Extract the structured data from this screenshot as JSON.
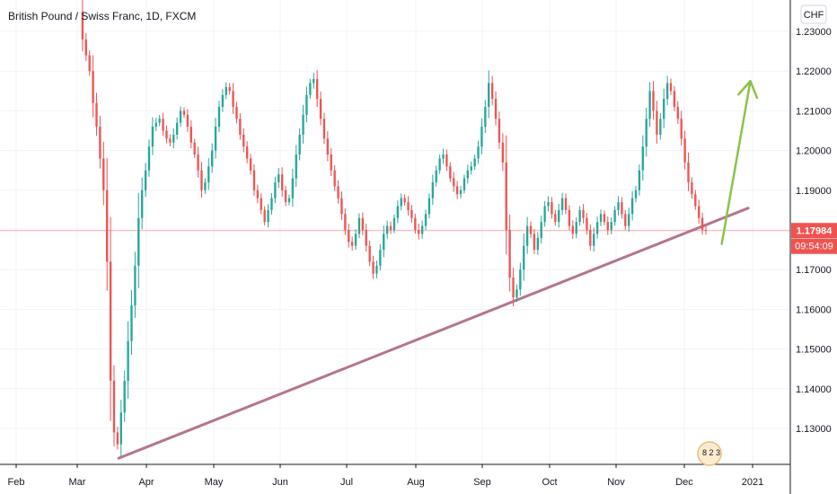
{
  "chart_data": {
    "type": "candlestick",
    "title": "British Pound / Swiss Franc, 1D, FXCM",
    "currency": "CHF",
    "y_range": [
      1.121,
      1.233
    ],
    "y_ticks": [
      "1.23000",
      "1.22000",
      "1.21000",
      "1.20000",
      "1.19000",
      "1.18000",
      "1.17000",
      "1.16000",
      "1.15000",
      "1.14000",
      "1.13000"
    ],
    "x_ticks": [
      "Feb",
      "Mar",
      "Apr",
      "May",
      "Jun",
      "Jul",
      "Aug",
      "Sep",
      "Oct",
      "Nov",
      "Dec",
      "2021"
    ],
    "last_price": "1.17984",
    "countdown": "09:54:09",
    "up_color": "#26a69a",
    "down_color": "#ef5350",
    "trendline_color": "#b5758e",
    "arrow_color": "#8bc34a",
    "price_line_color": "#ef5350",
    "watermark_text": "8 2 3",
    "trendline": {
      "start": {
        "date": "2020-03-18",
        "value": 1.1225
      },
      "end": {
        "date": "2020-12-28",
        "value": 1.1855
      }
    },
    "arrow": {
      "start": {
        "date": "2020-12-16",
        "value": 1.1765
      },
      "end": {
        "date": "2020-12-29",
        "value": 1.2175
      }
    },
    "closes": [
      1.235,
      1.228,
      1.224,
      1.22,
      1.212,
      1.206,
      1.198,
      1.19,
      1.172,
      1.142,
      1.129,
      1.126,
      1.134,
      1.142,
      1.152,
      1.161,
      1.171,
      1.183,
      1.19,
      1.195,
      1.201,
      1.206,
      1.207,
      1.208,
      1.205,
      1.203,
      1.202,
      1.204,
      1.207,
      1.21,
      1.209,
      1.206,
      1.202,
      1.199,
      1.195,
      1.19,
      1.192,
      1.196,
      1.2,
      1.206,
      1.211,
      1.214,
      1.216,
      1.215,
      1.211,
      1.208,
      1.204,
      1.201,
      1.198,
      1.195,
      1.19,
      1.188,
      1.185,
      1.182,
      1.185,
      1.188,
      1.192,
      1.194,
      1.19,
      1.187,
      1.188,
      1.193,
      1.199,
      1.204,
      1.209,
      1.214,
      1.217,
      1.218,
      1.213,
      1.208,
      1.203,
      1.199,
      1.195,
      1.191,
      1.188,
      1.184,
      1.18,
      1.177,
      1.176,
      1.179,
      1.183,
      1.18,
      1.176,
      1.172,
      1.169,
      1.171,
      1.175,
      1.179,
      1.181,
      1.18,
      1.183,
      1.186,
      1.188,
      1.187,
      1.185,
      1.183,
      1.18,
      1.179,
      1.181,
      1.184,
      1.188,
      1.192,
      1.195,
      1.198,
      1.199,
      1.196,
      1.193,
      1.191,
      1.189,
      1.19,
      1.193,
      1.195,
      1.196,
      1.198,
      1.201,
      1.206,
      1.211,
      1.217,
      1.213,
      1.208,
      1.202,
      1.197,
      1.18,
      1.168,
      1.163,
      1.165,
      1.17,
      1.176,
      1.181,
      1.179,
      1.175,
      1.178,
      1.182,
      1.186,
      1.187,
      1.184,
      1.182,
      1.185,
      1.188,
      1.185,
      1.181,
      1.179,
      1.182,
      1.185,
      1.183,
      1.18,
      1.176,
      1.179,
      1.182,
      1.184,
      1.182,
      1.18,
      1.182,
      1.185,
      1.187,
      1.184,
      1.181,
      1.184,
      1.188,
      1.19,
      1.195,
      1.201,
      1.208,
      1.215,
      1.21,
      1.204,
      1.208,
      1.213,
      1.217,
      1.215,
      1.211,
      1.208,
      1.203,
      1.197,
      1.192,
      1.189,
      1.186,
      1.183,
      1.18,
      1.17984
    ]
  }
}
